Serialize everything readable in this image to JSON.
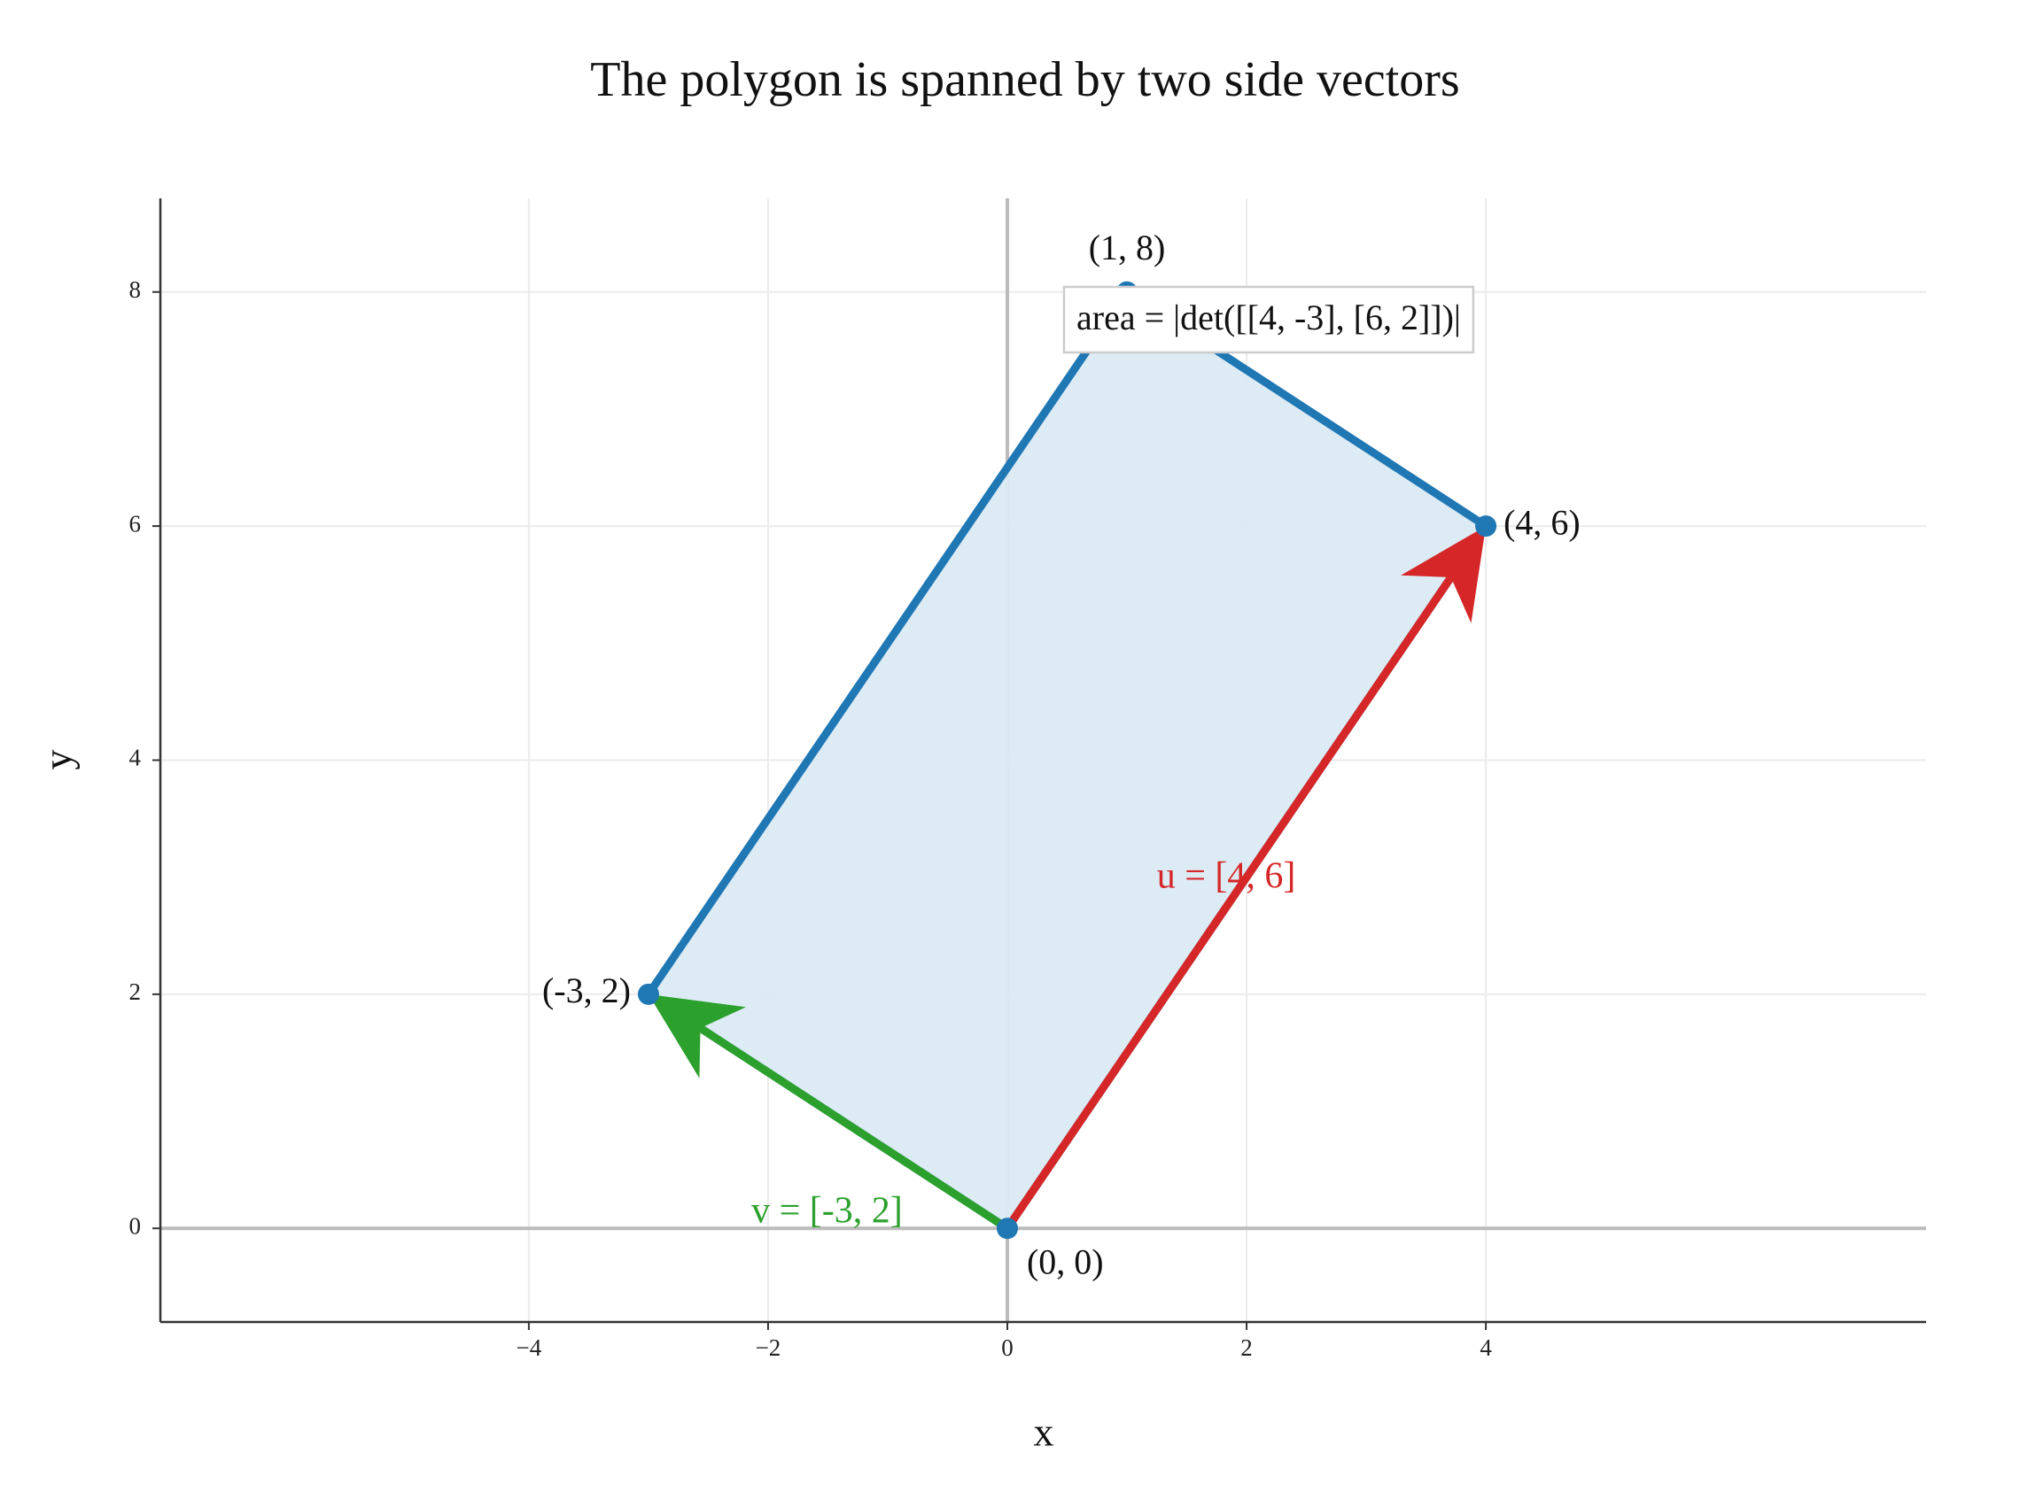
{
  "chart_data": {
    "type": "parallelogram",
    "title": "The polygon is spanned by two side vectors",
    "x_label": "x",
    "y_label": "y",
    "xlim": [
      -7.08,
      7.68
    ],
    "ylim": [
      -0.8,
      8.8
    ],
    "xticks": [
      {
        "value": -4,
        "label": "−4"
      },
      {
        "value": -2,
        "label": "−2"
      },
      0,
      2,
      4
    ],
    "yticks": [
      0,
      2,
      4,
      6,
      8
    ],
    "grid": true,
    "polygon": {
      "color": "#1f77b4",
      "fill": "#dbeaf4",
      "x": [
        0,
        4,
        1,
        -3
      ],
      "y": [
        0,
        6,
        8,
        2
      ],
      "labels": [
        "(0, 0)",
        "(4, 6)",
        "(1, 8)",
        "(-3, 2)"
      ]
    },
    "vectors": [
      {
        "name": "u = [4, 6]",
        "color": "#d62728",
        "x": [
          0,
          4
        ],
        "y": [
          0,
          6
        ]
      },
      {
        "name": "v = [-3, 2]",
        "color": "#2ca02c",
        "x": [
          0,
          -3
        ],
        "y": [
          0,
          2
        ]
      }
    ],
    "annotation": "area = |det([[4, -3], [6, 2]])|"
  }
}
